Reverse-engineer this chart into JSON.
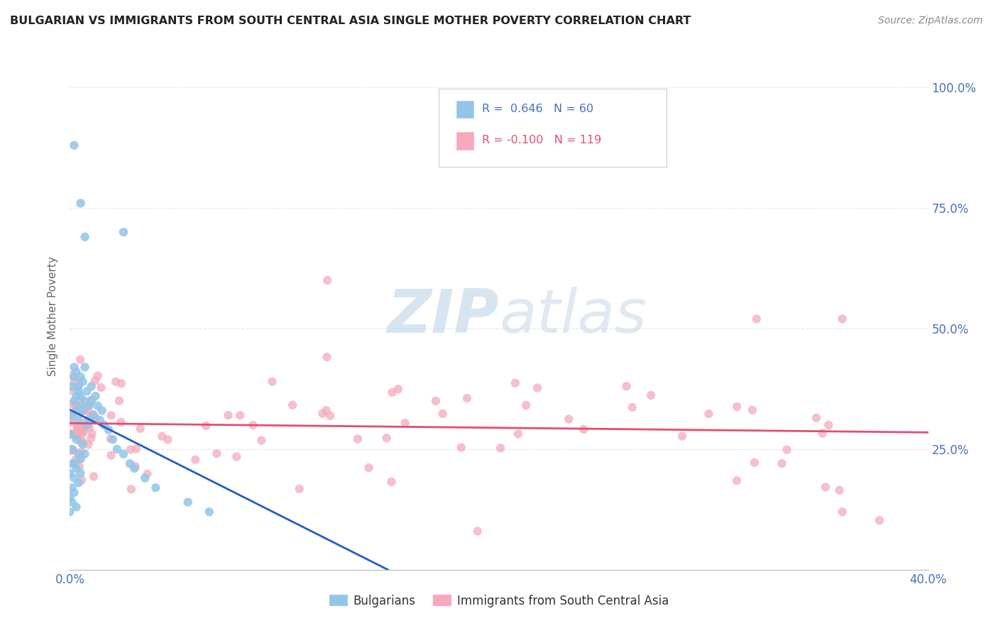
{
  "title": "BULGARIAN VS IMMIGRANTS FROM SOUTH CENTRAL ASIA SINGLE MOTHER POVERTY CORRELATION CHART",
  "source": "Source: ZipAtlas.com",
  "ylabel": "Single Mother Poverty",
  "legend_blue_r": "0.646",
  "legend_blue_n": "60",
  "legend_pink_r": "-0.100",
  "legend_pink_n": "119",
  "blue_color": "#92C5E8",
  "pink_color": "#F4AABB",
  "blue_line_color": "#2060C0",
  "pink_line_color": "#E05070",
  "watermark_color": "#D0E4F0",
  "background_color": "#FFFFFF",
  "grid_color": "#E0E8EE",
  "title_color": "#222222",
  "source_color": "#888888",
  "axis_label_color": "#666666",
  "tick_color": "#4472C4",
  "xlim": [
    0.0,
    0.4
  ],
  "ylim": [
    0.0,
    1.05
  ],
  "x_tick_positions": [
    0.0,
    0.4
  ],
  "x_tick_labels": [
    "0.0%",
    "40.0%"
  ],
  "y_tick_positions": [
    0.25,
    0.5,
    0.75,
    1.0
  ],
  "y_tick_labels": [
    "25.0%",
    "50.0%",
    "75.0%",
    "100.0%"
  ]
}
